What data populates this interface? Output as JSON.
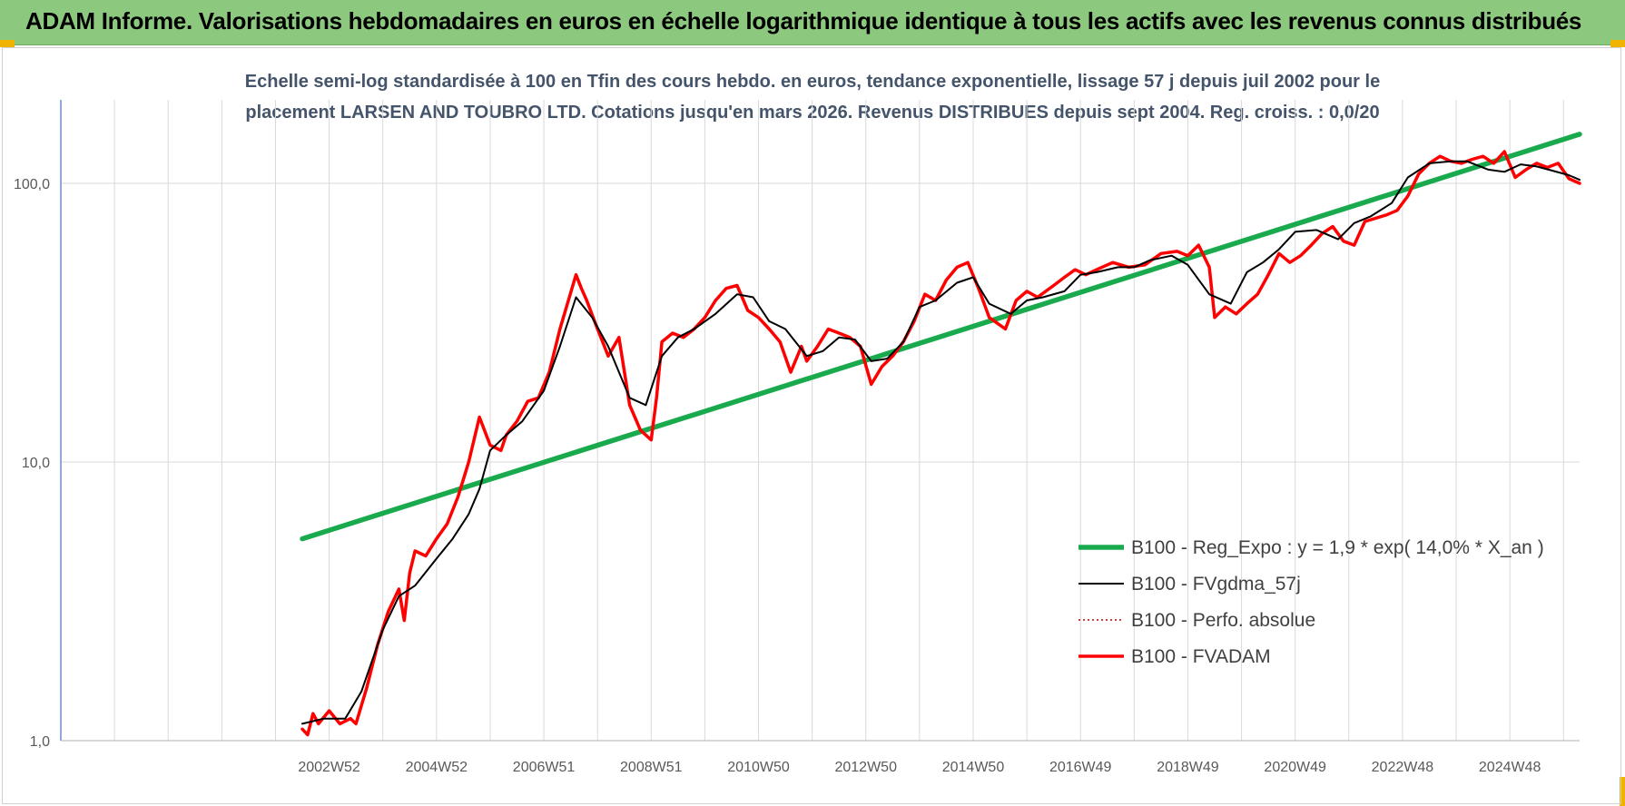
{
  "header": {
    "title": "ADAM Informe. Valorisations hebdomadaires en euros en échelle logarithmique identique à tous les actifs avec les revenus connus distribués"
  },
  "colors": {
    "banner": "#8cc97e",
    "regression": "#1aaa4e",
    "smoothed": "#000000",
    "absolute": "#c00000",
    "fvadam": "#ff0000"
  },
  "chart_data": {
    "type": "line",
    "subtitle_lines": [
      "Echelle semi-log standardisée à 100 en Tfin des cours hebdo. en euros, tendance exponentielle, lissage 57 j depuis juil 2002 pour le",
      "placement LARSEN  AND TOUBRO LTD. Cotations jusqu'en mars 2026. Revenus DISTRIBUES depuis sept 2004. Reg. croiss. : 0,0/20"
    ],
    "y_scale": "log",
    "ylim": [
      1,
      200
    ],
    "y_ticks": [
      {
        "value": 1,
        "label": "1,0"
      },
      {
        "value": 10,
        "label": "10,0"
      },
      {
        "value": 100,
        "label": "100,0"
      }
    ],
    "xlim": [
      1998.0,
      2026.3
    ],
    "x_ticks": [
      {
        "value": 2003.0,
        "label": "2002W52"
      },
      {
        "value": 2005.0,
        "label": "2004W52"
      },
      {
        "value": 2007.0,
        "label": "2006W51"
      },
      {
        "value": 2009.0,
        "label": "2008W51"
      },
      {
        "value": 2011.0,
        "label": "2010W50"
      },
      {
        "value": 2013.0,
        "label": "2012W50"
      },
      {
        "value": 2015.0,
        "label": "2014W50"
      },
      {
        "value": 2017.0,
        "label": "2016W49"
      },
      {
        "value": 2019.0,
        "label": "2018W49"
      },
      {
        "value": 2021.0,
        "label": "2020W49"
      },
      {
        "value": 2023.0,
        "label": "2022W48"
      },
      {
        "value": 2025.0,
        "label": "2024W48"
      }
    ],
    "grid": true,
    "legend_position": "bottom-right",
    "series": [
      {
        "name": "B100 - Reg_Expo : y = 1,9 * exp( 14,0% *  X_an )",
        "style": "thick",
        "x": [
          2002.5,
          2026.3
        ],
        "y": [
          5.3,
          150
        ]
      },
      {
        "name": "B100 - FVgdma_57j",
        "style": "thin",
        "x": [
          2002.5,
          2002.9,
          2003.3,
          2003.6,
          2004.0,
          2004.3,
          2004.6,
          2005.0,
          2005.3,
          2005.6,
          2005.8,
          2006.0,
          2006.3,
          2006.6,
          2007.0,
          2007.3,
          2007.6,
          2007.9,
          2008.2,
          2008.6,
          2008.9,
          2009.2,
          2009.5,
          2009.8,
          2010.2,
          2010.6,
          2010.9,
          2011.2,
          2011.5,
          2011.9,
          2012.2,
          2012.5,
          2012.8,
          2013.1,
          2013.4,
          2013.7,
          2014.0,
          2014.3,
          2014.7,
          2015.0,
          2015.3,
          2015.7,
          2016.0,
          2016.3,
          2016.7,
          2017.0,
          2017.3,
          2017.7,
          2018.0,
          2018.3,
          2018.7,
          2019.0,
          2019.4,
          2019.8,
          2020.1,
          2020.4,
          2020.7,
          2021.0,
          2021.4,
          2021.8,
          2022.1,
          2022.4,
          2022.8,
          2023.1,
          2023.5,
          2023.9,
          2024.2,
          2024.6,
          2024.9,
          2025.2,
          2025.5,
          2025.8,
          2026.1,
          2026.3
        ],
        "y": [
          1.15,
          1.2,
          1.2,
          1.5,
          2.5,
          3.3,
          3.6,
          4.5,
          5.3,
          6.5,
          8.0,
          11.0,
          12.5,
          14.0,
          18.0,
          26.0,
          39.0,
          33.0,
          26.0,
          17.0,
          16.0,
          24.0,
          28.0,
          30.0,
          34.0,
          40.0,
          39.0,
          32.0,
          30.0,
          24.0,
          25.0,
          28.0,
          27.5,
          23.0,
          23.5,
          27.0,
          36.0,
          38.0,
          44.0,
          46.0,
          37.0,
          34.0,
          38.0,
          39.0,
          41.0,
          47.0,
          48.0,
          50.0,
          50.0,
          53.0,
          55.0,
          51.0,
          40.0,
          37.0,
          48.0,
          52.0,
          58.0,
          67.0,
          68.0,
          63.0,
          72.0,
          76.0,
          85.0,
          105.0,
          118.0,
          120.0,
          120.0,
          112.0,
          110.0,
          117.0,
          115.0,
          111.0,
          107.0,
          103.0
        ]
      },
      {
        "name": "B100 - Perfo. absolue",
        "style": "dotted",
        "x": [],
        "y": []
      },
      {
        "name": "B100 - FVADAM",
        "style": "thick",
        "x": [
          2002.5,
          2002.6,
          2002.7,
          2002.8,
          2003.0,
          2003.2,
          2003.4,
          2003.5,
          2003.7,
          2003.9,
          2004.1,
          2004.3,
          2004.4,
          2004.5,
          2004.6,
          2004.8,
          2005.0,
          2005.2,
          2005.4,
          2005.6,
          2005.8,
          2006.0,
          2006.2,
          2006.3,
          2006.5,
          2006.7,
          2006.9,
          2007.1,
          2007.3,
          2007.6,
          2007.7,
          2007.8,
          2008.0,
          2008.2,
          2008.4,
          2008.6,
          2008.8,
          2009.0,
          2009.1,
          2009.2,
          2009.4,
          2009.6,
          2009.8,
          2010.0,
          2010.2,
          2010.4,
          2010.6,
          2010.8,
          2011.0,
          2011.2,
          2011.4,
          2011.6,
          2011.8,
          2011.9,
          2012.1,
          2012.3,
          2012.5,
          2012.7,
          2012.9,
          2013.1,
          2013.3,
          2013.5,
          2013.7,
          2013.9,
          2014.1,
          2014.3,
          2014.5,
          2014.7,
          2014.9,
          2015.1,
          2015.3,
          2015.6,
          2015.8,
          2016.0,
          2016.2,
          2016.5,
          2016.7,
          2016.9,
          2017.1,
          2017.3,
          2017.6,
          2017.9,
          2018.2,
          2018.5,
          2018.8,
          2019.0,
          2019.2,
          2019.4,
          2019.5,
          2019.7,
          2019.9,
          2020.1,
          2020.3,
          2020.5,
          2020.7,
          2020.9,
          2021.1,
          2021.3,
          2021.5,
          2021.7,
          2021.9,
          2022.1,
          2022.3,
          2022.5,
          2022.7,
          2022.9,
          2023.1,
          2023.3,
          2023.5,
          2023.7,
          2023.9,
          2024.1,
          2024.3,
          2024.5,
          2024.7,
          2024.9,
          2025.1,
          2025.3,
          2025.5,
          2025.7,
          2025.9,
          2026.1,
          2026.3
        ],
        "y": [
          1.1,
          1.05,
          1.25,
          1.15,
          1.28,
          1.15,
          1.2,
          1.15,
          1.55,
          2.2,
          2.9,
          3.5,
          2.7,
          4.0,
          4.8,
          4.6,
          5.3,
          6.0,
          7.5,
          10.0,
          14.5,
          11.5,
          11.0,
          12.5,
          14.0,
          16.5,
          17.0,
          21.0,
          30.0,
          47.0,
          42.0,
          38.0,
          30.0,
          24.0,
          28.0,
          16.0,
          13.0,
          12.0,
          17.0,
          27.0,
          29.0,
          28.0,
          30.0,
          33.0,
          38.0,
          42.0,
          43.0,
          35.0,
          33.0,
          30.0,
          27.0,
          21.0,
          26.0,
          23.0,
          26.0,
          30.0,
          29.0,
          28.0,
          26.0,
          19.0,
          22.0,
          24.0,
          27.0,
          32.0,
          40.0,
          38.0,
          45.0,
          50.0,
          52.0,
          42.0,
          33.0,
          30.0,
          38.0,
          41.0,
          39.0,
          43.0,
          46.0,
          49.0,
          47.0,
          49.0,
          52.0,
          50.0,
          51.0,
          56.0,
          57.0,
          55.0,
          60.0,
          50.0,
          33.0,
          36.0,
          34.0,
          37.0,
          40.0,
          47.0,
          56.0,
          52.0,
          55.0,
          60.0,
          66.0,
          70.0,
          62.0,
          60.0,
          73.0,
          75.0,
          77.0,
          80.0,
          90.0,
          108.0,
          118.0,
          125.0,
          120.0,
          118.0,
          122.0,
          125.0,
          118.0,
          130.0,
          105.0,
          112.0,
          118.0,
          114.0,
          118.0,
          104.0,
          100.0
        ]
      }
    ]
  }
}
